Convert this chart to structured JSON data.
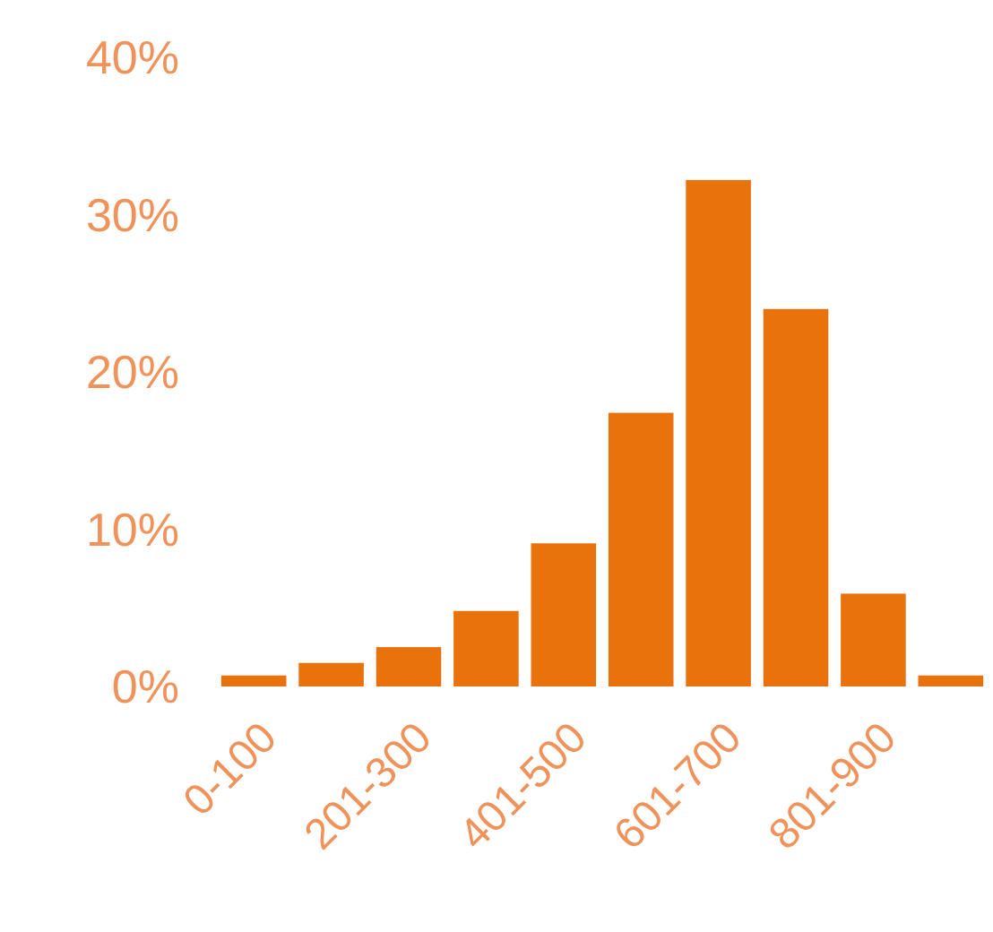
{
  "chart_data": {
    "type": "bar",
    "categories": [
      "0-100",
      null,
      "201-300",
      null,
      "401-500",
      null,
      "601-700",
      null,
      "801-900",
      null
    ],
    "values": [
      0.7,
      1.5,
      2.5,
      4.8,
      9.1,
      17.4,
      32.2,
      24.0,
      5.9,
      0.7
    ],
    "color": "#e8720c",
    "ylim": [
      0,
      40
    ],
    "yticks": [
      {
        "value": 0,
        "label": "0%"
      },
      {
        "value": 10,
        "label": "10%"
      },
      {
        "value": 20,
        "label": "20%"
      },
      {
        "value": 30,
        "label": "30%"
      },
      {
        "value": 40,
        "label": "40%"
      }
    ],
    "grid": false
  }
}
